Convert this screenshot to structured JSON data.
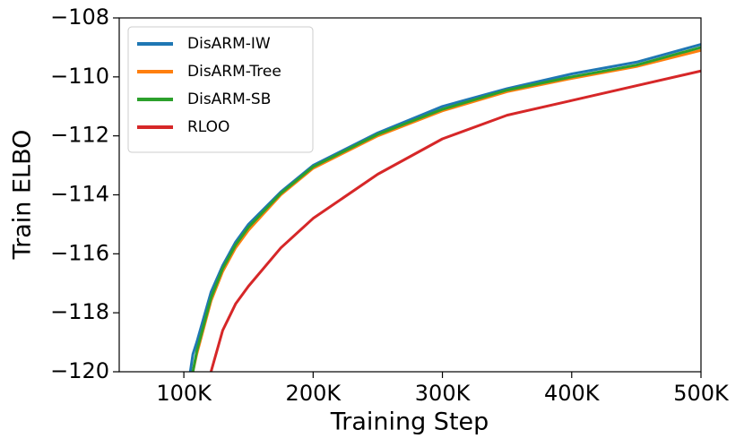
{
  "chart_data": {
    "type": "line",
    "xlabel": "Training Step",
    "ylabel": "Train ELBO",
    "x": [
      105000,
      107000,
      110000,
      121000,
      130000,
      140000,
      150000,
      175000,
      200000,
      250000,
      300000,
      350000,
      400000,
      450000,
      500000
    ],
    "series": [
      {
        "name": "DisARM-IW",
        "color": "#1f77b4",
        "values": [
          -120,
          -119.4,
          -119.0,
          -117.3,
          -116.4,
          -115.6,
          -115.0,
          -113.9,
          -113.0,
          -111.9,
          -111.0,
          -110.4,
          -109.9,
          -109.5,
          -108.9
        ]
      },
      {
        "name": "DisARM-Tree",
        "color": "#ff7f0e",
        "values": [
          null,
          -120,
          -119.4,
          -117.6,
          -116.6,
          -115.8,
          -115.2,
          -114.0,
          -113.1,
          -112.0,
          -111.15,
          -110.5,
          -110.05,
          -109.65,
          -109.1
        ]
      },
      {
        "name": "DisARM-SB",
        "color": "#2ca02c",
        "values": [
          null,
          -120,
          -119.3,
          -117.5,
          -116.5,
          -115.7,
          -115.1,
          -113.95,
          -113.05,
          -111.95,
          -111.1,
          -110.45,
          -110.0,
          -109.6,
          -109.0
        ]
      },
      {
        "name": "RLOO",
        "color": "#d62728",
        "values": [
          null,
          null,
          null,
          -120,
          -118.6,
          -117.7,
          -117.1,
          -115.8,
          -114.8,
          -113.3,
          -112.1,
          -111.3,
          -110.8,
          -110.3,
          -109.8
        ]
      }
    ],
    "xlim": [
      50000,
      500000
    ],
    "xticks": [
      {
        "value": 100000,
        "label": "100K"
      },
      {
        "value": 200000,
        "label": "200K"
      },
      {
        "value": 300000,
        "label": "300K"
      },
      {
        "value": 400000,
        "label": "400K"
      },
      {
        "value": 500000,
        "label": "500K"
      }
    ],
    "ylim": [
      -120,
      -108
    ],
    "yticks": [
      {
        "value": -120,
        "label": "−120"
      },
      {
        "value": -118,
        "label": "−118"
      },
      {
        "value": -116,
        "label": "−116"
      },
      {
        "value": -114,
        "label": "−114"
      },
      {
        "value": -112,
        "label": "−112"
      },
      {
        "value": -110,
        "label": "−110"
      },
      {
        "value": -108,
        "label": "−108"
      }
    ],
    "legend": "upper left",
    "grid": false
  }
}
